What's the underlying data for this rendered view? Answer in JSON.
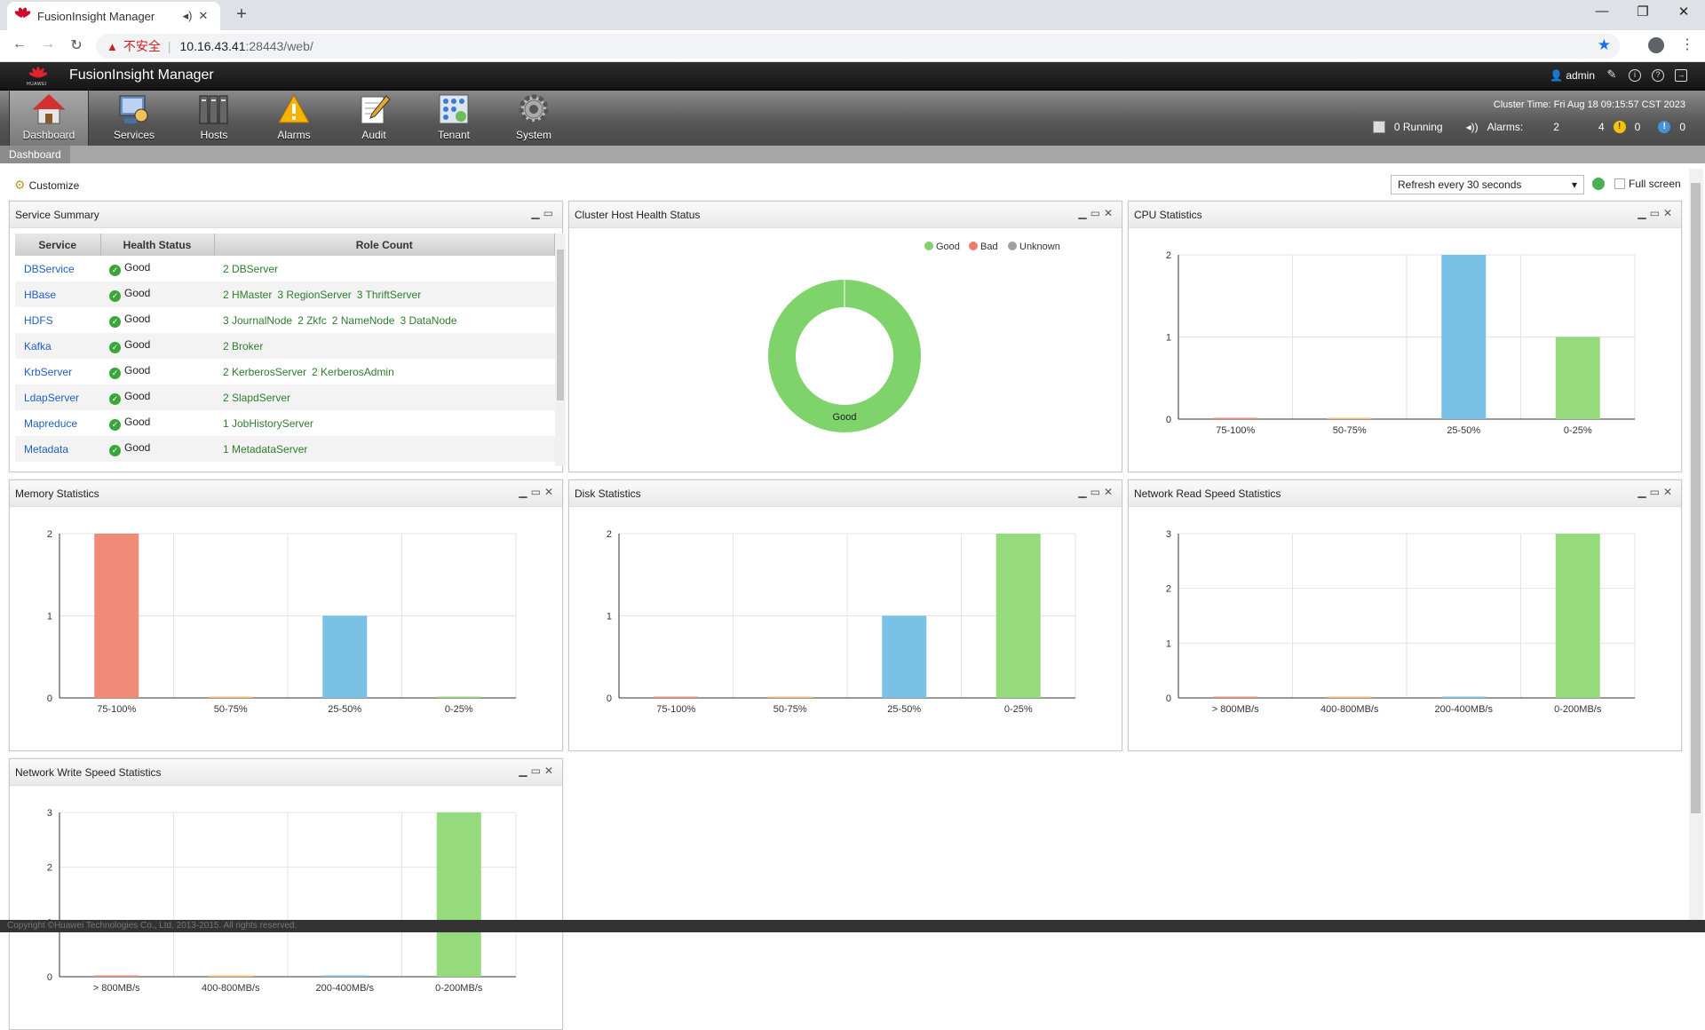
{
  "browser": {
    "tab_title": "FusionInsight Manager",
    "insecure_label": "不安全",
    "url_host": "10.16.43.41",
    "url_path": ":28443/web/"
  },
  "header": {
    "app_title": "FusionInsight Manager",
    "brand": "HUAWEI",
    "user": "admin"
  },
  "nav": {
    "items": [
      {
        "label": "Dashboard",
        "icon": "house-icon",
        "active": true
      },
      {
        "label": "Services",
        "icon": "services-icon"
      },
      {
        "label": "Hosts",
        "icon": "hosts-icon"
      },
      {
        "label": "Alarms",
        "icon": "alarm-icon"
      },
      {
        "label": "Audit",
        "icon": "audit-icon"
      },
      {
        "label": "Tenant",
        "icon": "tenant-icon"
      },
      {
        "label": "System",
        "icon": "gear-icon"
      }
    ],
    "cluster_time": "Cluster Time: Fri Aug 18 09:15:57 CST 2023",
    "running": "0 Running",
    "alarms_label": "Alarms:",
    "alarm_critical": "2",
    "alarm_major": "4",
    "alarm_minor": "0",
    "alarm_warning": "0"
  },
  "breadcrumb": "Dashboard",
  "toolbar": {
    "customize": "Customize",
    "refresh": "Refresh every 30 seconds",
    "fullscreen": "Full screen"
  },
  "panels": {
    "service_summary": "Service Summary",
    "cluster_health": "Cluster Host Health Status",
    "cpu": "CPU Statistics",
    "memory": "Memory Statistics",
    "disk": "Disk Statistics",
    "net_read": "Network Read Speed Statistics",
    "net_write": "Network Write Speed Statistics"
  },
  "service_table": {
    "headers": [
      "Service",
      "Health Status",
      "Role Count"
    ],
    "rows": [
      {
        "service": "DBService",
        "status": "Good",
        "roles": [
          "2 DBServer"
        ]
      },
      {
        "service": "HBase",
        "status": "Good",
        "roles": [
          "2 HMaster",
          "3 RegionServer",
          "3 ThriftServer"
        ]
      },
      {
        "service": "HDFS",
        "status": "Good",
        "roles": [
          "3 JournalNode",
          "2 Zkfc",
          "2 NameNode",
          "3 DataNode"
        ]
      },
      {
        "service": "Kafka",
        "status": "Good",
        "roles": [
          "2 Broker"
        ]
      },
      {
        "service": "KrbServer",
        "status": "Good",
        "roles": [
          "2 KerberosServer",
          "2 KerberosAdmin"
        ]
      },
      {
        "service": "LdapServer",
        "status": "Good",
        "roles": [
          "2 SlapdServer"
        ]
      },
      {
        "service": "Mapreduce",
        "status": "Good",
        "roles": [
          "1 JobHistoryServer"
        ]
      },
      {
        "service": "Metadata",
        "status": "Good",
        "roles": [
          "1 MetadataServer"
        ]
      }
    ]
  },
  "footer": "Copyright ©Huawei Technologies Co., Ltd. 2013-2015. All rights reserved.",
  "chart_data": [
    {
      "id": "health",
      "type": "pie",
      "title": "Cluster Host Health Status",
      "legend": [
        "Good",
        "Bad",
        "Unknown"
      ],
      "colors": [
        "#7ed36b",
        "#ef7b6b",
        "#a0a0a0"
      ],
      "values": [
        1,
        0,
        0
      ],
      "center_label": "Good"
    },
    {
      "id": "cpu",
      "type": "bar",
      "title": "CPU Statistics",
      "categories": [
        "75-100%",
        "50-75%",
        "25-50%",
        "0-25%"
      ],
      "values": [
        0,
        0,
        2,
        1
      ],
      "ylim": [
        0,
        2
      ],
      "yticks": [
        "0",
        "1",
        "2"
      ],
      "colors": [
        "#f08b78",
        "#f3c070",
        "#79c2e6",
        "#95da7c"
      ]
    },
    {
      "id": "mem",
      "type": "bar",
      "title": "Memory Statistics",
      "categories": [
        "75-100%",
        "50-75%",
        "25-50%",
        "0-25%"
      ],
      "values": [
        2,
        0,
        1,
        0
      ],
      "ylim": [
        0,
        2
      ],
      "yticks": [
        "0",
        "1",
        "2"
      ],
      "colors": [
        "#f08b78",
        "#f3c070",
        "#79c2e6",
        "#95da7c"
      ]
    },
    {
      "id": "disk",
      "type": "bar",
      "title": "Disk Statistics",
      "categories": [
        "75-100%",
        "50-75%",
        "25-50%",
        "0-25%"
      ],
      "values": [
        0,
        0,
        1,
        2
      ],
      "ylim": [
        0,
        2
      ],
      "yticks": [
        "0",
        "1",
        "2"
      ],
      "colors": [
        "#f08b78",
        "#f3c070",
        "#79c2e6",
        "#95da7c"
      ]
    },
    {
      "id": "netread",
      "type": "bar",
      "title": "Network Read Speed Statistics",
      "categories": [
        "> 800MB/s",
        "400-800MB/s",
        "200-400MB/s",
        "0-200MB/s"
      ],
      "values": [
        0,
        0,
        0,
        3
      ],
      "ylim": [
        0,
        3
      ],
      "yticks": [
        "0",
        "1",
        "2",
        "3"
      ],
      "colors": [
        "#f08b78",
        "#f3c070",
        "#79c2e6",
        "#95da7c"
      ]
    },
    {
      "id": "netwrite",
      "type": "bar",
      "title": "Network Write Speed Statistics",
      "categories": [
        "> 800MB/s",
        "400-800MB/s",
        "200-400MB/s",
        "0-200MB/s"
      ],
      "values": [
        0,
        0,
        0,
        3
      ],
      "ylim": [
        0,
        3
      ],
      "yticks": [
        "0",
        "1",
        "2",
        "3"
      ],
      "colors": [
        "#f08b78",
        "#f3c070",
        "#79c2e6",
        "#95da7c"
      ]
    }
  ]
}
